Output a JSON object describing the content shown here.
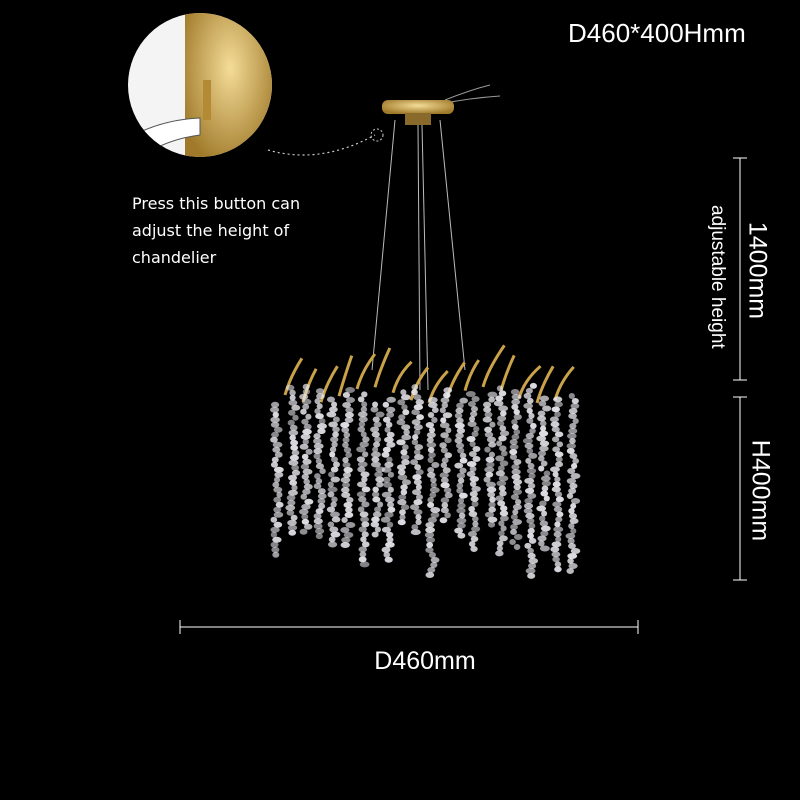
{
  "title": "D460*400Hmm",
  "note_lines": [
    "Press this button can",
    "adjust the height of",
    "chandelier"
  ],
  "dimensions": {
    "adjustable_length": "1400mm",
    "adjustable_label": "adjustable height",
    "height": "H400mm",
    "diameter": "D460mm"
  },
  "colors": {
    "background": "#000000",
    "gold": "#c9a24a",
    "crystal": "#e8e8ee"
  }
}
